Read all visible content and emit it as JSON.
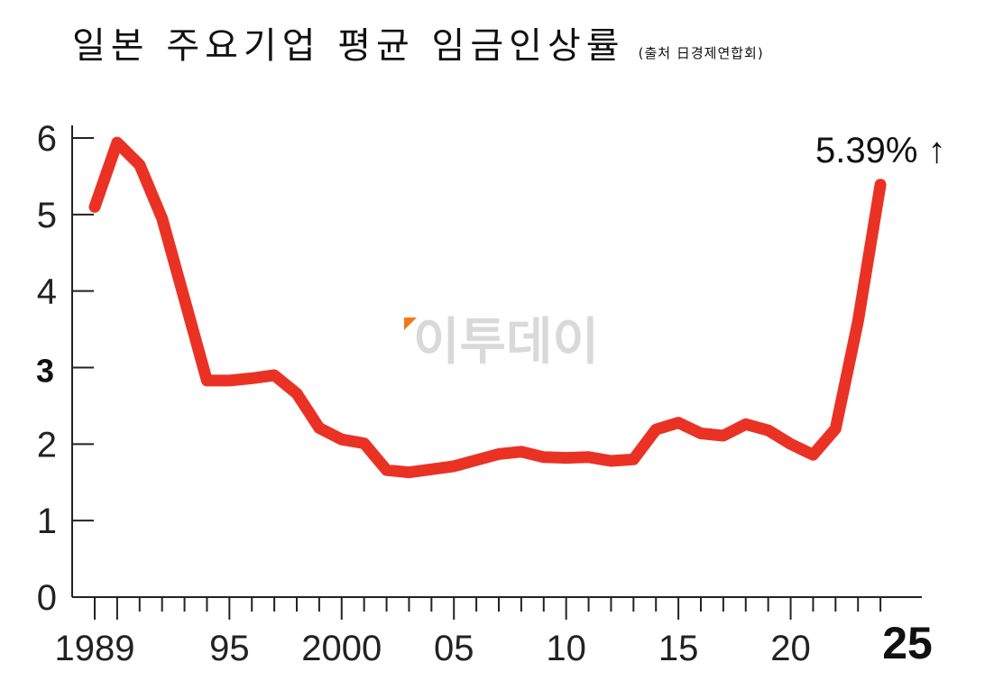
{
  "chart_data": {
    "type": "line",
    "title": "일본 주요기업 평균 임금인상률",
    "source": "(출처 日경제연합회)",
    "annotation": "5.39% ↑",
    "watermark": "이투데이",
    "ylim": [
      0,
      6
    ],
    "y_ticks": [
      {
        "value": 0,
        "label": "0",
        "bold": false
      },
      {
        "value": 1,
        "label": "1",
        "bold": false
      },
      {
        "value": 2,
        "label": "2",
        "bold": false
      },
      {
        "value": 3,
        "label": "3",
        "bold": true
      },
      {
        "value": 4,
        "label": "4",
        "bold": false
      },
      {
        "value": 5,
        "label": "5",
        "bold": false
      },
      {
        "value": 6,
        "label": "6",
        "bold": false
      }
    ],
    "x_ticks": [
      {
        "value": 1989,
        "label": "1989",
        "bold": false
      },
      {
        "value": 1995,
        "label": "95",
        "bold": false
      },
      {
        "value": 2000,
        "label": "2000",
        "bold": false
      },
      {
        "value": 2005,
        "label": "05",
        "bold": false
      },
      {
        "value": 2010,
        "label": "10",
        "bold": false
      },
      {
        "value": 2015,
        "label": "15",
        "bold": false
      },
      {
        "value": 2020,
        "label": "20",
        "bold": false
      },
      {
        "value": 2025,
        "label": "25",
        "bold": true
      }
    ],
    "x": [
      1989,
      1990,
      1991,
      1992,
      1993,
      1994,
      1995,
      1996,
      1997,
      1998,
      1999,
      2000,
      2001,
      2002,
      2003,
      2004,
      2005,
      2006,
      2007,
      2008,
      2009,
      2010,
      2011,
      2012,
      2013,
      2014,
      2015,
      2016,
      2017,
      2018,
      2019,
      2020,
      2021,
      2022,
      2023,
      2024
    ],
    "series": [
      {
        "values": [
          5.1,
          5.94,
          5.65,
          4.95,
          3.89,
          2.83,
          2.83,
          2.86,
          2.9,
          2.66,
          2.21,
          2.06,
          2.01,
          1.66,
          1.63,
          1.67,
          1.71,
          1.79,
          1.87,
          1.9,
          1.83,
          1.82,
          1.83,
          1.78,
          1.8,
          2.19,
          2.28,
          2.14,
          2.11,
          2.26,
          2.18,
          2.0,
          1.86,
          2.2,
          3.6,
          5.39
        ]
      }
    ],
    "grid": false
  }
}
